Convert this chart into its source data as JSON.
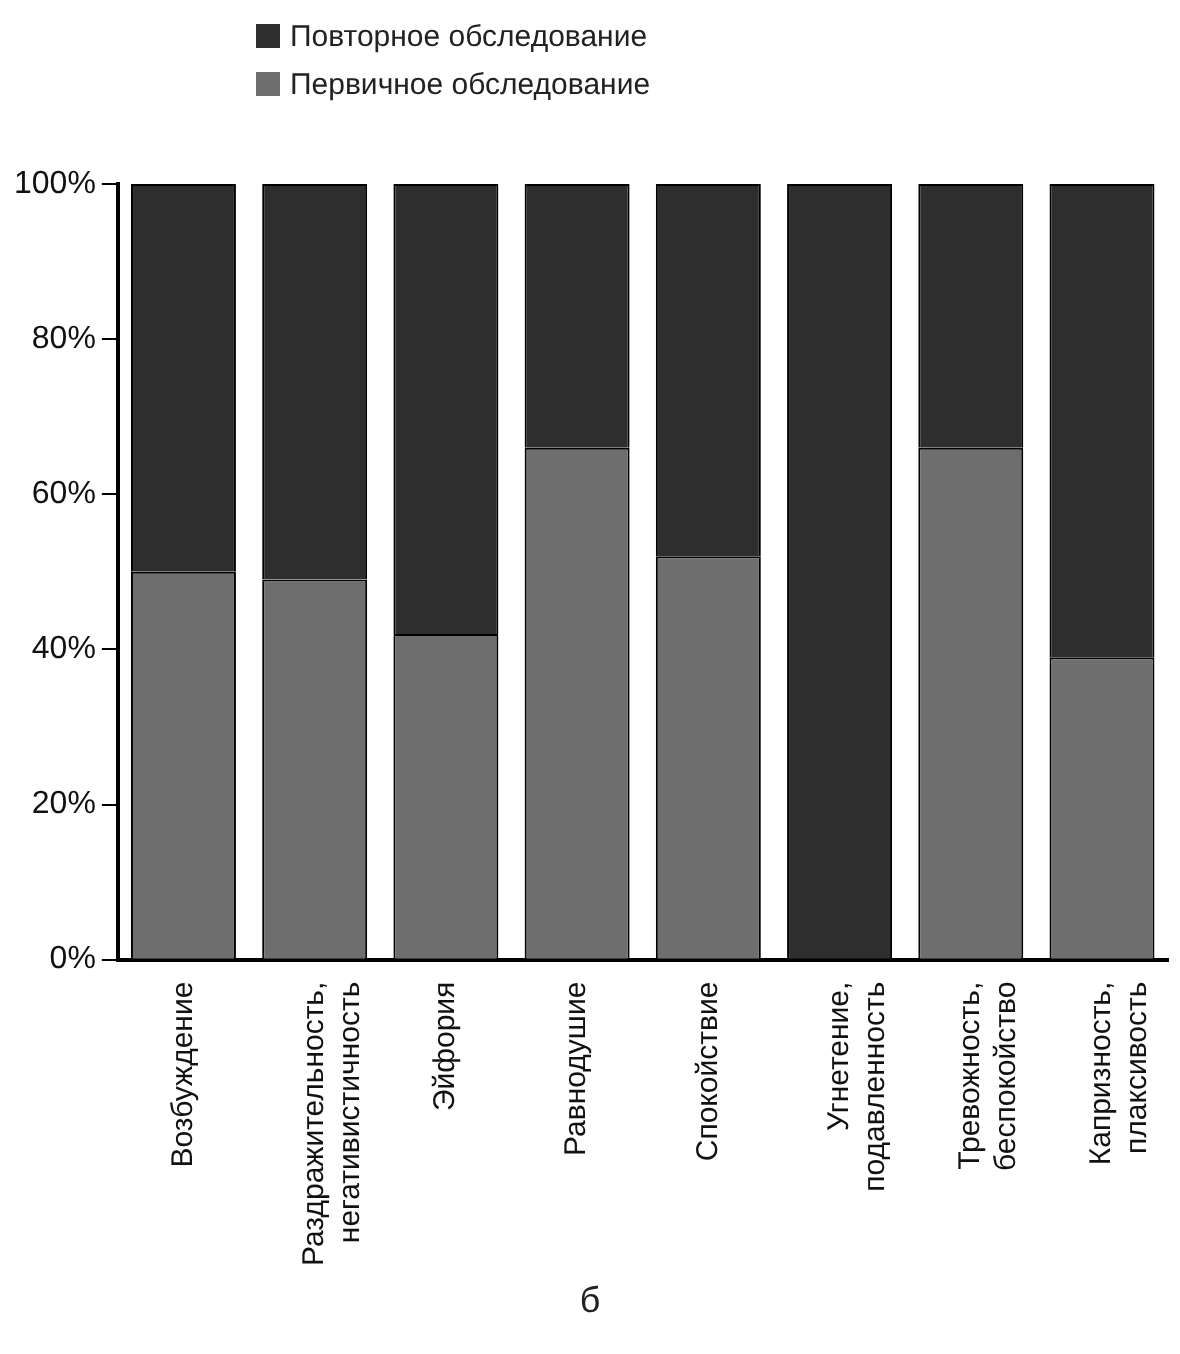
{
  "chart_data": {
    "type": "bar",
    "stacked": true,
    "categories": [
      "Возбуждение",
      "Раздражительность, негативистичность",
      "Эйфория",
      "Равнодушие",
      "Спокойствие",
      "Угнетение, подавленность",
      "Тревожность, беспокойство",
      "Капризность, плаксивость"
    ],
    "series": [
      {
        "name": "Первичное обследование",
        "color": "#6e6e6e",
        "values": [
          50,
          49,
          42,
          66,
          52,
          0,
          66,
          39
        ]
      },
      {
        "name": "Повторное обследование",
        "color": "#2e2e2e",
        "values": [
          50,
          51,
          58,
          34,
          48,
          100,
          34,
          61
        ]
      }
    ],
    "ylim": [
      0,
      100
    ],
    "yticks": [
      {
        "value": 0,
        "label": "0%"
      },
      {
        "value": 20,
        "label": "20%"
      },
      {
        "value": 40,
        "label": "40%"
      },
      {
        "value": 60,
        "label": "60%"
      },
      {
        "value": 80,
        "label": "80%"
      },
      {
        "value": 100,
        "label": "100%"
      }
    ],
    "grid": false,
    "legend": "top",
    "annotations": [
      "б"
    ]
  }
}
